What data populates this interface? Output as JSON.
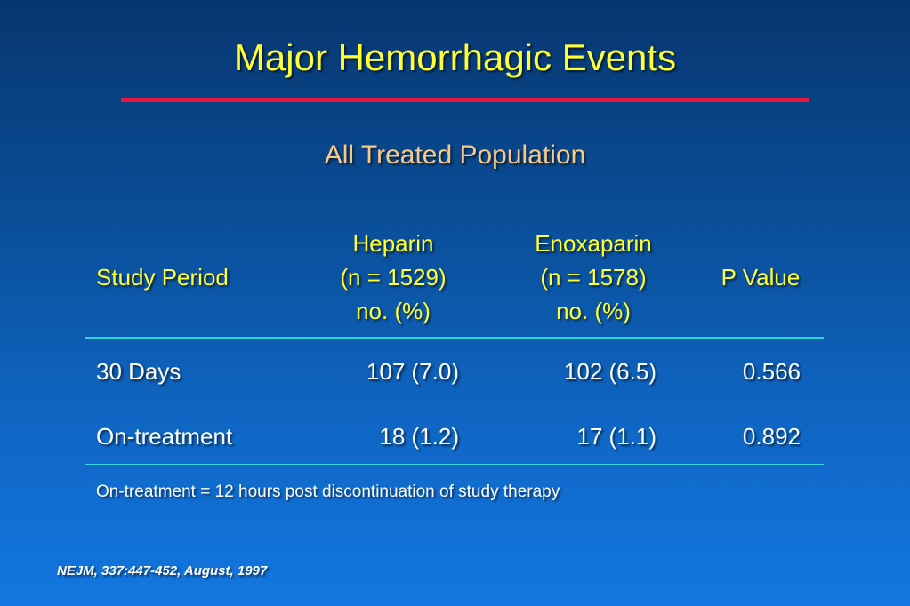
{
  "slide": {
    "title": "Major Hemorrhagic Events",
    "subtitle": "All Treated Population",
    "colors": {
      "title": "#ffff33",
      "subtitle": "#f4c98a",
      "rule": "#e8153c",
      "table_rule": "#2fd6d6",
      "background_top": "#07366f",
      "background_bottom": "#1277e0"
    }
  },
  "table": {
    "headers": {
      "study_period": "Study Period",
      "heparin": [
        "Heparin",
        "(n = 1529)",
        "no. (%)"
      ],
      "enoxaparin": [
        "Enoxaparin",
        "(n = 1578)",
        "no. (%)"
      ],
      "p_value": "P Value"
    },
    "rows": [
      {
        "period": "30 Days",
        "heparin": "107 (7.0)",
        "enoxaparin": "102 (6.5)",
        "p": "0.566"
      },
      {
        "period": "On-treatment",
        "heparin": "18 (1.2)",
        "enoxaparin": "17 (1.1)",
        "p": "0.892"
      }
    ]
  },
  "footnote": "On-treatment = 12 hours post discontinuation of study therapy",
  "citation": "NEJM, 337:447-452, August, 1997"
}
